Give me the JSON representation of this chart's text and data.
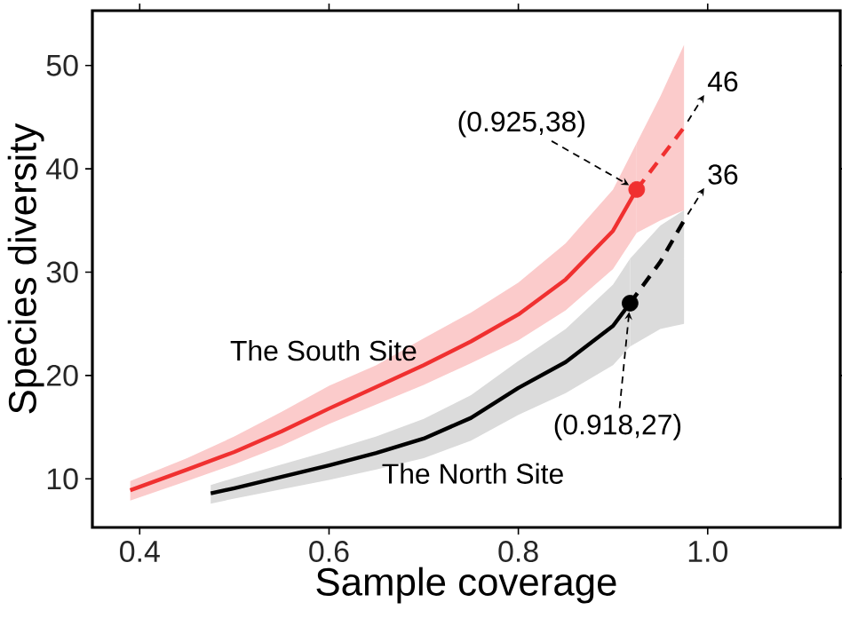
{
  "chart_data": {
    "type": "line",
    "xlabel": "Sample coverage",
    "ylabel": "Species diversity",
    "xlim": [
      0.35,
      1.14
    ],
    "ylim": [
      5.3,
      55.3
    ],
    "xticks": [
      0.4,
      0.6,
      0.8,
      {
        "value": 1.0,
        "label": "1.0"
      }
    ],
    "yticks": [
      10,
      20,
      30,
      40,
      50
    ],
    "grid": false,
    "series": [
      {
        "name": "The North Site",
        "color": "#000000",
        "line_style": "solid",
        "x": [
          0.475,
          0.5,
          0.55,
          0.6,
          0.65,
          0.7,
          0.75,
          0.8,
          0.85,
          0.9,
          0.918
        ],
        "values": [
          8.6,
          9.1,
          10.2,
          11.3,
          12.5,
          13.9,
          15.9,
          18.8,
          21.3,
          24.8,
          27
        ],
        "lower": [
          7.6,
          8.1,
          9.0,
          9.9,
          10.9,
          12.0,
          13.7,
          16.2,
          18.3,
          21.0,
          22.8
        ],
        "upper": [
          9.4,
          10.1,
          11.4,
          12.7,
          14.1,
          15.8,
          18.1,
          21.4,
          24.5,
          28.8,
          31.3
        ]
      },
      {
        "color": "#000000",
        "line_style": "dashed",
        "x": [
          0.918,
          0.95,
          0.975
        ],
        "values": [
          27,
          31,
          35
        ],
        "lower": [
          22.8,
          24.5,
          25
        ],
        "upper": [
          31.3,
          34.5,
          36
        ]
      },
      {
        "name": "The South Site",
        "color": "#f03030",
        "line_style": "solid",
        "x": [
          0.39,
          0.45,
          0.5,
          0.55,
          0.6,
          0.65,
          0.7,
          0.75,
          0.8,
          0.85,
          0.9,
          0.925
        ],
        "values": [
          8.9,
          10.9,
          12.6,
          14.6,
          16.8,
          18.9,
          21.0,
          23.3,
          25.9,
          29.3,
          34.0,
          38
        ],
        "lower": [
          7.9,
          9.8,
          11.4,
          13.2,
          15.3,
          17.2,
          19.1,
          21.2,
          23.4,
          26.3,
          30.3,
          33.8
        ],
        "upper": [
          9.8,
          12.0,
          14.1,
          16.5,
          19.0,
          21.0,
          23.6,
          26.1,
          29.0,
          32.8,
          38.0,
          42.5
        ]
      },
      {
        "color": "#f03030",
        "line_style": "dashed",
        "x": [
          0.925,
          0.95,
          0.975
        ],
        "values": [
          38,
          41,
          44
        ],
        "lower": [
          33.8,
          35,
          36
        ],
        "upper": [
          42.5,
          47,
          52
        ]
      },
      {
        "type": "scatter",
        "marker": "circle",
        "color": "#f03030",
        "x": [
          0.925
        ],
        "values": [
          38
        ]
      },
      {
        "type": "scatter",
        "marker": "circle",
        "color": "#000000",
        "x": [
          0.918
        ],
        "values": [
          27
        ]
      }
    ],
    "annotations": [
      {
        "text": "(0.925,38)",
        "x": 0.925,
        "y": 38
      },
      {
        "text": "(0.918,27)",
        "x": 0.918,
        "y": 27
      },
      "46",
      "36"
    ]
  }
}
